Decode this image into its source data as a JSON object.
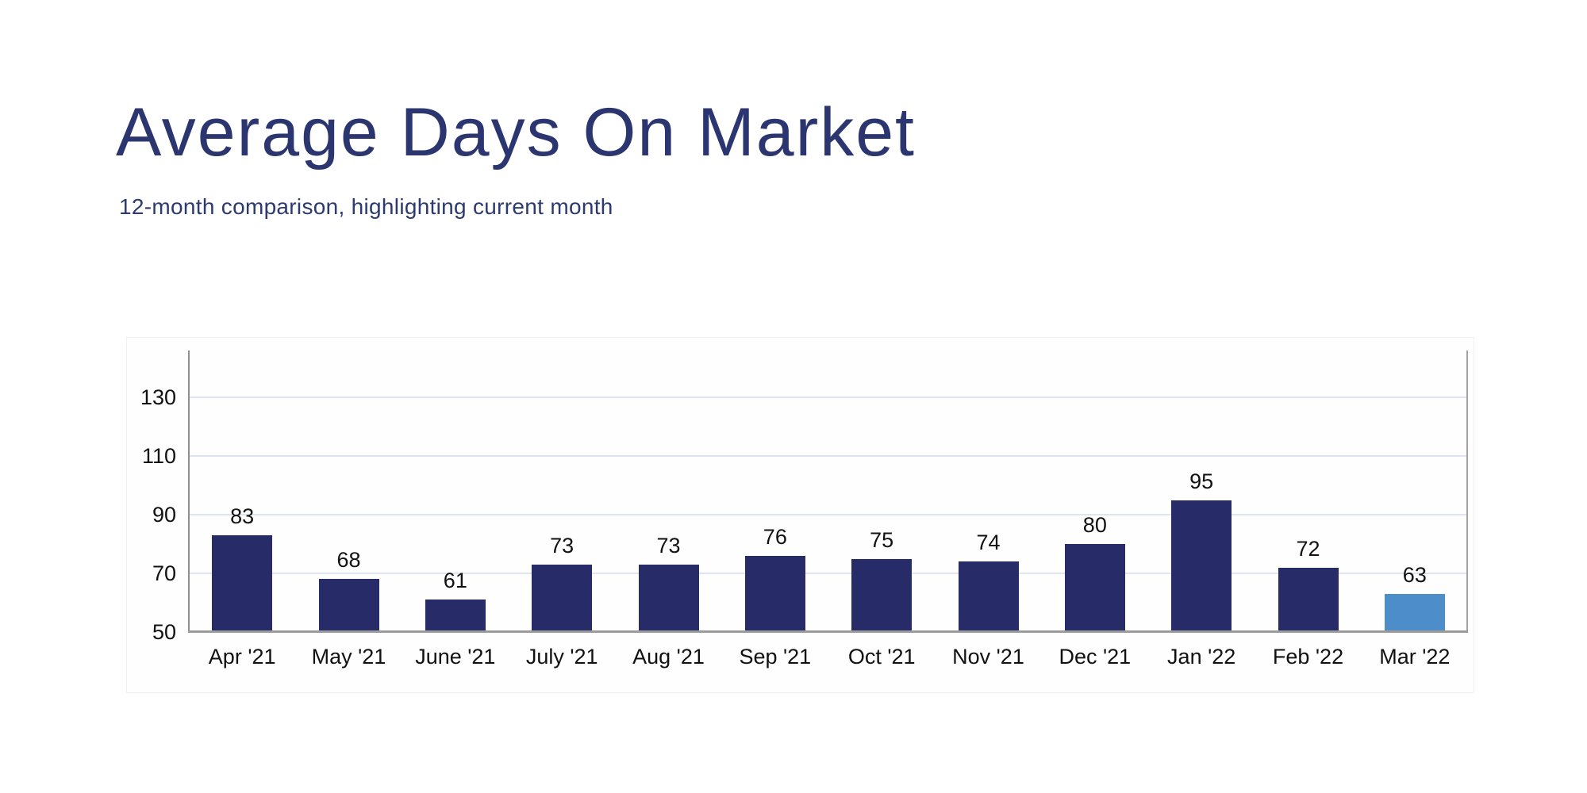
{
  "page": {
    "title": "Average Days On Market",
    "subtitle": "12-month comparison, highlighting current month"
  },
  "colors": {
    "title_text": "#2b356f",
    "subtitle_text": "#2d3a70",
    "bar": "#272c69",
    "bar_highlight": "#4c8dca",
    "axis_line": "#8f8f8f",
    "gridline": "#dfe5f0",
    "label_text": "#111111",
    "background": "#ffffff"
  },
  "chart_data": {
    "type": "bar",
    "title": "Average Days On Market",
    "subtitle": "12-month comparison, highlighting current month",
    "categories": [
      "Apr '21",
      "May '21",
      "June '21",
      "July '21",
      "Aug '21",
      "Sep '21",
      "Oct '21",
      "Nov '21",
      "Dec '21",
      "Jan '22",
      "Feb '22",
      "Mar '22"
    ],
    "values": [
      83,
      68,
      61,
      73,
      73,
      76,
      75,
      74,
      80,
      95,
      72,
      63
    ],
    "value_labels": [
      "83",
      "68",
      "61",
      "73",
      "73",
      "76",
      "75",
      "74",
      "80",
      "95",
      "72",
      "63"
    ],
    "highlighted_category": "Mar '22",
    "highlight_index": 11,
    "yticks": [
      50,
      70,
      90,
      110,
      130
    ],
    "ylim": [
      50,
      146
    ],
    "xlabel": "",
    "ylabel": "",
    "grid": true,
    "legend": false
  }
}
